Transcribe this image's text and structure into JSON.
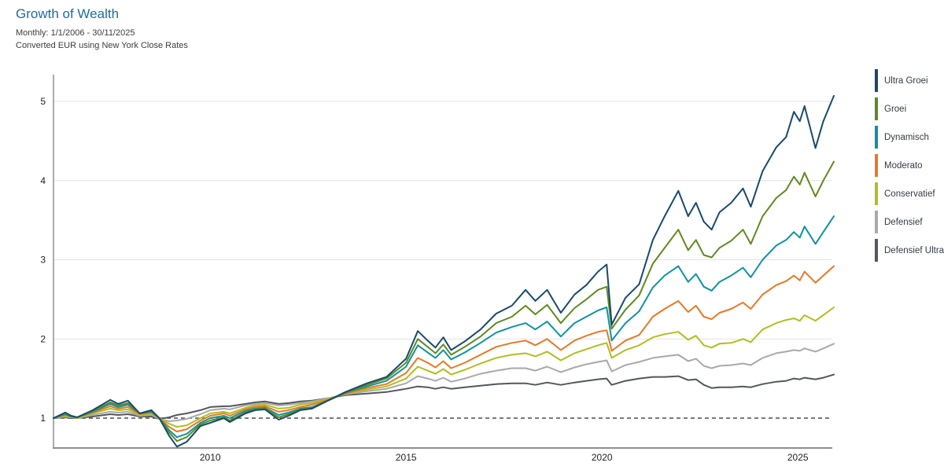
{
  "header": {
    "title": "Growth of Wealth",
    "subtitle1": "Monthly: 1/1/2006 - 30/11/2025",
    "subtitle2": "Converted EUR using New York Close Rates"
  },
  "colors": {
    "title": "#1C6EA4",
    "grid": "#e4e4e4",
    "axis": "#8f8f8f",
    "baseline": "#4d4d4d",
    "tick_text": "#222222",
    "legend_text": "#333a46"
  },
  "chart_data": {
    "type": "line",
    "title": "Growth of Wealth",
    "xlabel": "",
    "ylabel": "",
    "x_ticks": [
      2010,
      2015,
      2020,
      2025
    ],
    "y_ticks": [
      1,
      2,
      3,
      4,
      5
    ],
    "x_range": [
      2006.0,
      2025.92
    ],
    "y_view_range": [
      0.62,
      5.34
    ],
    "baseline_value": 1,
    "grid": "horizontal-only",
    "legend_position": "right",
    "x": [
      2006.0,
      2006.3,
      2006.45,
      2006.6,
      2007.0,
      2007.45,
      2007.65,
      2007.9,
      2008.2,
      2008.5,
      2008.7,
      2008.95,
      2009.15,
      2009.4,
      2009.75,
      2010.0,
      2010.35,
      2010.5,
      2010.9,
      2011.15,
      2011.4,
      2011.75,
      2012.0,
      2012.3,
      2012.6,
      2013.0,
      2013.45,
      2014.0,
      2014.5,
      2015.0,
      2015.3,
      2015.55,
      2015.75,
      2015.95,
      2016.15,
      2016.5,
      2016.9,
      2017.3,
      2017.7,
      2018.05,
      2018.3,
      2018.6,
      2018.95,
      2019.3,
      2019.6,
      2019.9,
      2020.12,
      2020.25,
      2020.6,
      2020.95,
      2021.3,
      2021.6,
      2021.95,
      2022.2,
      2022.4,
      2022.6,
      2022.8,
      2023.0,
      2023.3,
      2023.6,
      2023.8,
      2024.1,
      2024.45,
      2024.7,
      2024.9,
      2025.05,
      2025.17,
      2025.45,
      2025.65,
      2025.92
    ],
    "series": [
      {
        "name": "Ultra Groei",
        "color": "#174A6F",
        "final_value": 5.07,
        "values": [
          1.0,
          1.07,
          1.03,
          1.01,
          1.1,
          1.23,
          1.18,
          1.22,
          1.06,
          1.1,
          1.0,
          0.78,
          0.64,
          0.7,
          0.9,
          0.94,
          1.0,
          0.95,
          1.06,
          1.1,
          1.11,
          0.98,
          1.03,
          1.1,
          1.12,
          1.22,
          1.33,
          1.44,
          1.52,
          1.75,
          2.1,
          1.98,
          1.89,
          2.02,
          1.86,
          1.97,
          2.12,
          2.32,
          2.42,
          2.62,
          2.48,
          2.62,
          2.33,
          2.56,
          2.68,
          2.85,
          2.94,
          2.18,
          2.52,
          2.69,
          3.25,
          3.55,
          3.87,
          3.55,
          3.72,
          3.48,
          3.38,
          3.6,
          3.72,
          3.9,
          3.67,
          4.12,
          4.42,
          4.55,
          4.87,
          4.75,
          4.94,
          4.41,
          4.75,
          5.07
        ]
      },
      {
        "name": "Groei",
        "color": "#5F8A1F",
        "final_value": 4.24,
        "values": [
          1.0,
          1.06,
          1.03,
          1.01,
          1.09,
          1.2,
          1.16,
          1.19,
          1.06,
          1.09,
          1.0,
          0.82,
          0.71,
          0.76,
          0.92,
          0.97,
          1.01,
          0.97,
          1.07,
          1.11,
          1.12,
          1.01,
          1.05,
          1.11,
          1.13,
          1.22,
          1.32,
          1.42,
          1.5,
          1.7,
          2.0,
          1.9,
          1.82,
          1.93,
          1.8,
          1.9,
          2.03,
          2.2,
          2.28,
          2.42,
          2.31,
          2.43,
          2.2,
          2.39,
          2.5,
          2.62,
          2.66,
          2.13,
          2.37,
          2.55,
          2.95,
          3.15,
          3.38,
          3.12,
          3.25,
          3.06,
          3.03,
          3.15,
          3.24,
          3.38,
          3.2,
          3.55,
          3.78,
          3.88,
          4.05,
          3.95,
          4.1,
          3.8,
          4.0,
          4.24
        ]
      },
      {
        "name": "Dynamisch",
        "color": "#0D94A0",
        "final_value": 3.55,
        "values": [
          1.0,
          1.05,
          1.02,
          1.01,
          1.08,
          1.18,
          1.14,
          1.17,
          1.06,
          1.08,
          1.0,
          0.85,
          0.76,
          0.8,
          0.94,
          1.0,
          1.03,
          1.0,
          1.09,
          1.12,
          1.13,
          1.04,
          1.07,
          1.12,
          1.14,
          1.22,
          1.32,
          1.4,
          1.47,
          1.65,
          1.92,
          1.83,
          1.76,
          1.86,
          1.74,
          1.83,
          1.95,
          2.08,
          2.15,
          2.2,
          2.12,
          2.22,
          2.03,
          2.2,
          2.28,
          2.36,
          2.4,
          1.98,
          2.2,
          2.35,
          2.65,
          2.8,
          2.92,
          2.72,
          2.82,
          2.66,
          2.61,
          2.72,
          2.8,
          2.9,
          2.78,
          3.0,
          3.18,
          3.25,
          3.35,
          3.28,
          3.42,
          3.2,
          3.35,
          3.55
        ]
      },
      {
        "name": "Moderato",
        "color": "#E87824",
        "final_value": 2.92,
        "values": [
          1.0,
          1.04,
          1.02,
          1.01,
          1.07,
          1.15,
          1.12,
          1.14,
          1.05,
          1.07,
          1.0,
          0.89,
          0.83,
          0.86,
          0.97,
          1.03,
          1.06,
          1.03,
          1.11,
          1.14,
          1.15,
          1.08,
          1.1,
          1.14,
          1.17,
          1.23,
          1.31,
          1.38,
          1.43,
          1.57,
          1.76,
          1.7,
          1.64,
          1.72,
          1.63,
          1.7,
          1.8,
          1.9,
          1.95,
          1.98,
          1.92,
          2.0,
          1.86,
          1.98,
          2.04,
          2.09,
          2.11,
          1.85,
          1.98,
          2.05,
          2.28,
          2.38,
          2.48,
          2.34,
          2.42,
          2.28,
          2.25,
          2.33,
          2.38,
          2.46,
          2.38,
          2.56,
          2.68,
          2.73,
          2.8,
          2.74,
          2.85,
          2.71,
          2.8,
          2.92
        ]
      },
      {
        "name": "Conservatief",
        "color": "#B1BF1D",
        "final_value": 2.4,
        "values": [
          1.0,
          1.03,
          1.01,
          1.0,
          1.06,
          1.12,
          1.1,
          1.11,
          1.04,
          1.06,
          1.0,
          0.93,
          0.89,
          0.91,
          1.0,
          1.06,
          1.08,
          1.06,
          1.13,
          1.16,
          1.17,
          1.12,
          1.13,
          1.17,
          1.19,
          1.24,
          1.31,
          1.36,
          1.4,
          1.5,
          1.65,
          1.6,
          1.56,
          1.62,
          1.55,
          1.61,
          1.69,
          1.76,
          1.8,
          1.82,
          1.78,
          1.84,
          1.73,
          1.82,
          1.87,
          1.92,
          1.95,
          1.76,
          1.86,
          1.92,
          2.02,
          2.06,
          2.09,
          1.99,
          2.04,
          1.92,
          1.89,
          1.94,
          1.95,
          2.0,
          1.96,
          2.12,
          2.2,
          2.24,
          2.26,
          2.23,
          2.3,
          2.23,
          2.3,
          2.4
        ]
      },
      {
        "name": "Defensief",
        "color": "#A8A9AB",
        "final_value": 1.94,
        "values": [
          1.0,
          1.02,
          1.01,
          1.0,
          1.04,
          1.08,
          1.07,
          1.08,
          1.03,
          1.04,
          0.99,
          0.96,
          0.97,
          0.99,
          1.05,
          1.1,
          1.12,
          1.11,
          1.16,
          1.18,
          1.19,
          1.16,
          1.17,
          1.19,
          1.21,
          1.25,
          1.3,
          1.34,
          1.37,
          1.44,
          1.53,
          1.5,
          1.47,
          1.51,
          1.46,
          1.5,
          1.56,
          1.6,
          1.63,
          1.63,
          1.6,
          1.65,
          1.58,
          1.64,
          1.68,
          1.71,
          1.73,
          1.59,
          1.67,
          1.71,
          1.76,
          1.78,
          1.8,
          1.72,
          1.75,
          1.66,
          1.63,
          1.66,
          1.67,
          1.69,
          1.67,
          1.76,
          1.82,
          1.84,
          1.86,
          1.85,
          1.88,
          1.84,
          1.88,
          1.94
        ]
      },
      {
        "name": "Defensief Ultra",
        "color": "#54575B",
        "final_value": 1.55,
        "values": [
          1.0,
          1.01,
          1.0,
          1.0,
          1.02,
          1.05,
          1.04,
          1.05,
          1.02,
          1.02,
          0.99,
          1.01,
          1.04,
          1.06,
          1.1,
          1.14,
          1.15,
          1.15,
          1.18,
          1.2,
          1.21,
          1.18,
          1.19,
          1.21,
          1.22,
          1.25,
          1.29,
          1.31,
          1.33,
          1.37,
          1.4,
          1.39,
          1.37,
          1.39,
          1.37,
          1.39,
          1.41,
          1.43,
          1.44,
          1.44,
          1.42,
          1.45,
          1.42,
          1.45,
          1.47,
          1.49,
          1.5,
          1.42,
          1.47,
          1.5,
          1.52,
          1.52,
          1.53,
          1.48,
          1.49,
          1.42,
          1.38,
          1.39,
          1.39,
          1.4,
          1.39,
          1.43,
          1.46,
          1.47,
          1.5,
          1.49,
          1.51,
          1.49,
          1.51,
          1.55
        ]
      }
    ]
  }
}
